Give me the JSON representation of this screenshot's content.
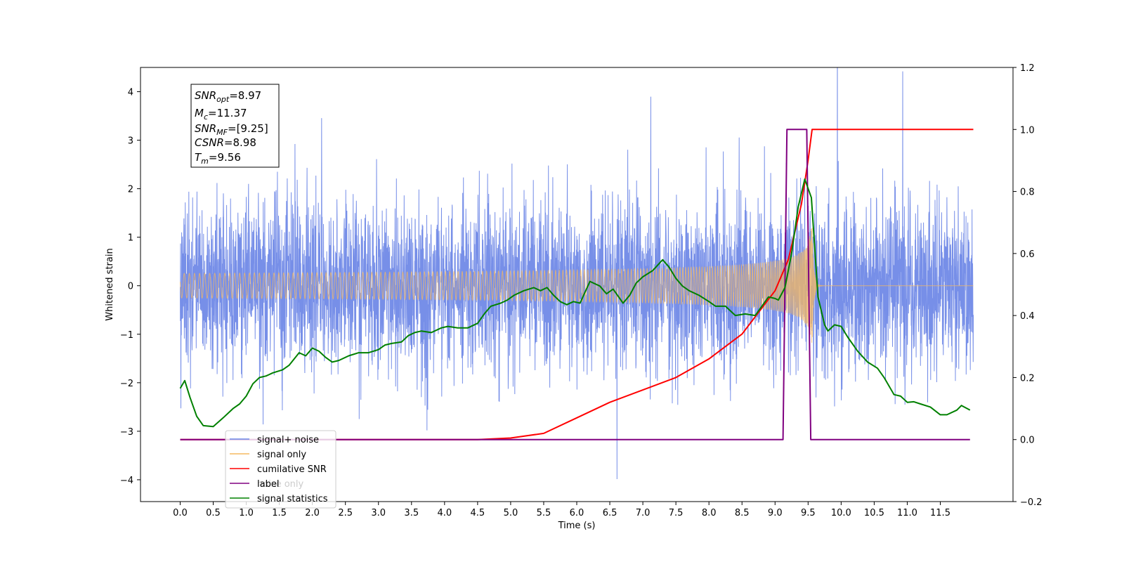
{
  "chart_data": {
    "type": "line",
    "xlabel": "Time (s)",
    "ylabel": "Whitened strain",
    "xlim": [
      -0.6,
      12.6
    ],
    "ylim": [
      -4.45,
      4.5
    ],
    "ylim_right": [
      -0.2,
      1.2
    ],
    "x_ticks": [
      "0.0",
      "0.5",
      "1.0",
      "1.5",
      "2.0",
      "2.5",
      "3.0",
      "3.5",
      "4.0",
      "4.5",
      "5.0",
      "5.5",
      "6.0",
      "6.5",
      "7.0",
      "7.5",
      "8.0",
      "8.5",
      "9.0",
      "9.5",
      "10.0",
      "10.5",
      "11.0",
      "11.5"
    ],
    "y_ticks_left": [
      "4",
      "3",
      "2",
      "1",
      "0",
      "−1",
      "−2",
      "−3",
      "−4"
    ],
    "y_ticks_right": [
      "1.2",
      "1.0",
      "0.8",
      "0.6",
      "0.4",
      "0.2",
      "0.0",
      "−0.2"
    ],
    "legend_position": "lower-left",
    "annotation": {
      "line1": {
        "sym": "SNR",
        "sub": "opt",
        "value": "=8.97"
      },
      "line2": {
        "sym": "M",
        "sub": "c",
        "value": "=11.37"
      },
      "line3": {
        "sym": "SNR",
        "sub": "MF",
        "value": "=[9.25]"
      },
      "line4": {
        "sym": "CSNR",
        "sub": "",
        "value": "=8.98"
      },
      "line5": {
        "sym": "T",
        "sub": "m",
        "value": "=9.56"
      }
    },
    "signal_merger_time": 9.56,
    "series": [
      {
        "name": "signal+ noise",
        "axis": "left",
        "color": "#6b86e6",
        "noise_std": 0.85,
        "x_range": [
          0.0,
          12.0
        ]
      },
      {
        "name": "signal only",
        "axis": "left",
        "color": "#f5b860",
        "peak_amplitude": 1.25,
        "x_range": [
          0.0,
          12.0
        ]
      },
      {
        "name": "cumilative SNR",
        "axis": "right",
        "color": "#ff0000",
        "x": [
          4.5,
          5.0,
          5.5,
          6.0,
          6.5,
          7.0,
          7.5,
          8.0,
          8.5,
          9.0,
          9.2,
          9.4,
          9.5,
          9.56,
          12.0
        ],
        "values": [
          0.0,
          0.005,
          0.02,
          0.07,
          0.12,
          0.16,
          0.2,
          0.26,
          0.34,
          0.48,
          0.58,
          0.76,
          0.9,
          1.0,
          1.0
        ]
      },
      {
        "name": "label",
        "axis": "right",
        "color": "#800080",
        "x": [
          0.0,
          9.12,
          9.18,
          9.48,
          9.54,
          11.95
        ],
        "values": [
          0.0,
          0.0,
          1.0,
          1.0,
          0.0,
          0.0
        ]
      },
      {
        "name": "noise only",
        "axis": "left",
        "color": "#d9d9d9",
        "legend_only": true
      },
      {
        "name": "signal statistics",
        "axis": "right",
        "color": "#008000",
        "x": [
          0.0,
          0.07,
          0.15,
          0.25,
          0.35,
          0.5,
          0.65,
          0.8,
          0.9,
          1.0,
          1.1,
          1.2,
          1.3,
          1.4,
          1.55,
          1.65,
          1.8,
          1.9,
          2.0,
          2.1,
          2.2,
          2.3,
          2.4,
          2.55,
          2.7,
          2.85,
          3.0,
          3.1,
          3.2,
          3.35,
          3.45,
          3.55,
          3.65,
          3.8,
          3.95,
          4.05,
          4.2,
          4.35,
          4.5,
          4.6,
          4.7,
          4.85,
          4.95,
          5.05,
          5.2,
          5.35,
          5.45,
          5.55,
          5.65,
          5.75,
          5.85,
          5.95,
          6.05,
          6.2,
          6.35,
          6.45,
          6.55,
          6.7,
          6.8,
          6.9,
          7.0,
          7.15,
          7.3,
          7.4,
          7.5,
          7.6,
          7.7,
          7.85,
          8.0,
          8.1,
          8.25,
          8.4,
          8.55,
          8.7,
          8.8,
          8.9,
          9.0,
          9.05,
          9.15,
          9.25,
          9.35,
          9.45,
          9.55,
          9.6,
          9.65,
          9.75,
          9.8,
          9.9,
          10.0,
          10.1,
          10.25,
          10.4,
          10.55,
          10.65,
          10.8,
          10.9,
          11.0,
          11.1,
          11.2,
          11.35,
          11.5,
          11.6,
          11.75,
          11.82,
          11.95
        ],
        "values": [
          0.165,
          0.19,
          0.135,
          0.075,
          0.045,
          0.042,
          0.07,
          0.1,
          0.115,
          0.14,
          0.18,
          0.2,
          0.205,
          0.215,
          0.225,
          0.24,
          0.28,
          0.27,
          0.295,
          0.285,
          0.265,
          0.25,
          0.255,
          0.27,
          0.28,
          0.28,
          0.29,
          0.305,
          0.31,
          0.315,
          0.335,
          0.345,
          0.35,
          0.345,
          0.36,
          0.365,
          0.36,
          0.36,
          0.375,
          0.405,
          0.43,
          0.44,
          0.45,
          0.465,
          0.48,
          0.49,
          0.48,
          0.49,
          0.465,
          0.445,
          0.435,
          0.445,
          0.44,
          0.51,
          0.495,
          0.47,
          0.485,
          0.44,
          0.465,
          0.505,
          0.525,
          0.545,
          0.58,
          0.555,
          0.52,
          0.495,
          0.48,
          0.465,
          0.445,
          0.43,
          0.43,
          0.4,
          0.405,
          0.4,
          0.43,
          0.46,
          0.455,
          0.45,
          0.49,
          0.6,
          0.75,
          0.84,
          0.78,
          0.62,
          0.46,
          0.37,
          0.35,
          0.37,
          0.365,
          0.33,
          0.285,
          0.25,
          0.23,
          0.2,
          0.145,
          0.14,
          0.12,
          0.122,
          0.115,
          0.105,
          0.08,
          0.08,
          0.095,
          0.11,
          0.095
        ]
      }
    ]
  }
}
